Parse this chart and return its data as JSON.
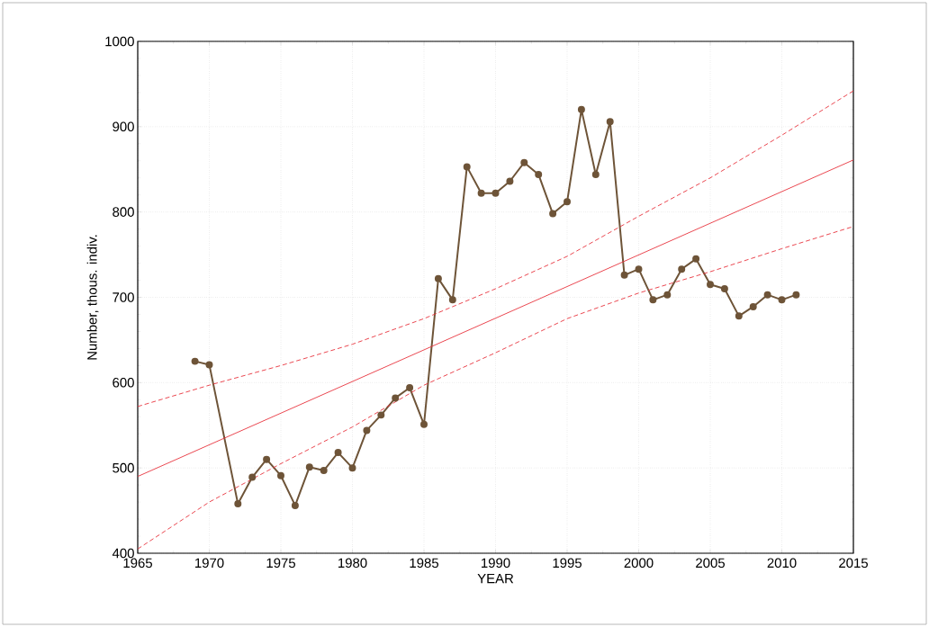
{
  "chart_data": {
    "type": "line",
    "xlabel": "YEAR",
    "ylabel": "Number, thous. indiv.",
    "xlim": [
      1965,
      2015
    ],
    "ylim": [
      400,
      1000
    ],
    "xticks": [
      1965,
      1970,
      1975,
      1980,
      1985,
      1990,
      1995,
      2000,
      2005,
      2010,
      2015
    ],
    "yticks": [
      400,
      500,
      600,
      700,
      800,
      900,
      1000
    ],
    "grid": true,
    "series": [
      {
        "color": "#6e5438",
        "marker": "circle",
        "line_style": "solid",
        "x": [
          1969,
          1970,
          1972,
          1973,
          1974,
          1975,
          1976,
          1977,
          1978,
          1979,
          1980,
          1981,
          1982,
          1983,
          1984,
          1985,
          1986,
          1987,
          1988,
          1989,
          1990,
          1991,
          1992,
          1993,
          1994,
          1995,
          1996,
          1997,
          1998,
          1999,
          2000,
          2001,
          2002,
          2003,
          2004,
          2005,
          2006,
          2007,
          2008,
          2009,
          2010,
          2011
        ],
        "values": [
          625,
          621,
          458,
          489,
          510,
          491,
          456,
          501,
          497,
          518,
          500,
          544,
          562,
          582,
          594,
          551,
          722,
          697,
          853,
          822,
          822,
          836,
          858,
          844,
          798,
          812,
          920,
          844,
          906,
          726,
          733,
          697,
          703,
          733,
          745,
          715,
          710,
          678,
          689,
          703,
          697,
          703
        ]
      },
      {
        "color": "#e8323c",
        "marker": "none",
        "line_style": "solid",
        "x": [
          1965,
          2015
        ],
        "values": [
          490,
          861
        ]
      },
      {
        "color": "#e8323c",
        "marker": "none",
        "line_style": "dashed",
        "x": [
          1965,
          1970,
          1975,
          1980,
          1985,
          1990,
          1995,
          2000,
          2005,
          2010,
          2015
        ],
        "values": [
          572,
          597,
          620,
          645,
          675,
          710,
          748,
          795,
          840,
          890,
          942
        ]
      },
      {
        "color": "#e8323c",
        "marker": "none",
        "line_style": "dashed",
        "x": [
          1965,
          1970,
          1975,
          1980,
          1985,
          1990,
          1995,
          2000,
          2005,
          2010,
          2015
        ],
        "values": [
          405,
          460,
          505,
          548,
          597,
          635,
          675,
          705,
          730,
          757,
          783
        ]
      }
    ]
  }
}
